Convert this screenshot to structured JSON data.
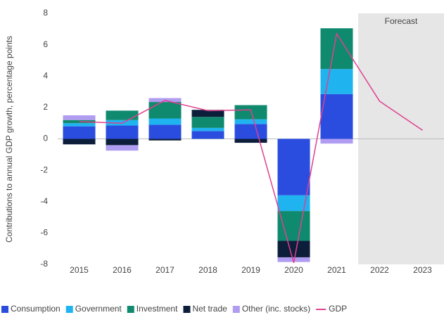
{
  "chart_data": {
    "type": "bar",
    "stacked": true,
    "y_label": "Contributions to annual GDP growth, percentage points",
    "categories": [
      "2015",
      "2016",
      "2017",
      "2018",
      "2019",
      "2020",
      "2021",
      "2022",
      "2023"
    ],
    "series": [
      {
        "name": "Consumption",
        "color": "#2a4de0",
        "values": [
          0.8,
          0.85,
          0.9,
          0.5,
          0.95,
          -3.6,
          2.85,
          null,
          null
        ]
      },
      {
        "name": "Government",
        "color": "#1fb3f0",
        "values": [
          0.2,
          0.35,
          0.4,
          0.2,
          0.3,
          -1.0,
          1.6,
          null,
          null
        ]
      },
      {
        "name": "Investment",
        "color": "#0f8a6e",
        "values": [
          0.2,
          0.6,
          1.05,
          0.7,
          0.9,
          -1.9,
          2.6,
          null,
          null
        ]
      },
      {
        "name": "Net trade",
        "color": "#0c1e3a",
        "values": [
          -0.35,
          -0.4,
          -0.1,
          0.45,
          -0.25,
          -1.05,
          0,
          null,
          null
        ]
      },
      {
        "name": "Other (inc. stocks)",
        "color": "#b09cf0",
        "values": [
          0.3,
          -0.35,
          0.25,
          0,
          0,
          -0.3,
          -0.3,
          null,
          null
        ]
      },
      {
        "name": "GDP",
        "color": "#e0408f",
        "type": "line",
        "values": [
          1.1,
          1.0,
          2.45,
          1.8,
          1.85,
          -7.9,
          6.7,
          2.4,
          0.55
        ]
      }
    ],
    "ylim": [
      -8,
      8
    ],
    "yticks": [
      -8,
      -6,
      -4,
      -2,
      0,
      2,
      4,
      6,
      8
    ],
    "forecast": {
      "label": "Forecast",
      "from": "2022"
    },
    "legend": "bottom-left"
  }
}
